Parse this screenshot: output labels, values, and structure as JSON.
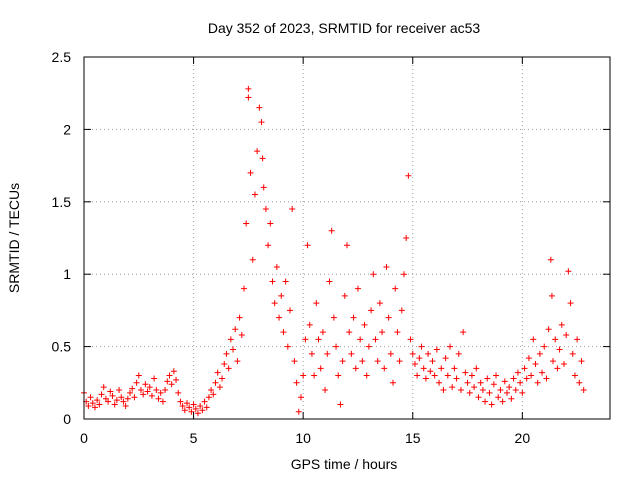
{
  "chart_data": {
    "type": "scatter",
    "title": "Day 352 of 2023, SRMTID for receiver ac53",
    "xlabel": "GPS time / hours",
    "ylabel": "SRMTID / TECUs",
    "xlim": [
      0,
      24
    ],
    "ylim": [
      0,
      2.5
    ],
    "xticks": [
      0,
      5,
      10,
      15,
      20
    ],
    "yticks": [
      0,
      0.5,
      1,
      1.5,
      2,
      2.5
    ],
    "xtick_labels": [
      "0",
      "5",
      "10",
      "15",
      "20"
    ],
    "ytick_labels": [
      "0",
      "0.5",
      "1",
      "1.5",
      "2",
      "2.5"
    ],
    "grid": true,
    "marker": "+",
    "color": "#ff0000",
    "series": [
      {
        "name": "SRMTID",
        "points": [
          [
            0.0,
            0.18
          ],
          [
            0.1,
            0.12
          ],
          [
            0.2,
            0.09
          ],
          [
            0.3,
            0.15
          ],
          [
            0.4,
            0.11
          ],
          [
            0.5,
            0.08
          ],
          [
            0.6,
            0.13
          ],
          [
            0.7,
            0.1
          ],
          [
            0.8,
            0.17
          ],
          [
            0.9,
            0.22
          ],
          [
            1.0,
            0.14
          ],
          [
            1.1,
            0.12
          ],
          [
            1.2,
            0.19
          ],
          [
            1.3,
            0.16
          ],
          [
            1.4,
            0.1
          ],
          [
            1.5,
            0.13
          ],
          [
            1.6,
            0.2
          ],
          [
            1.7,
            0.15
          ],
          [
            1.8,
            0.12
          ],
          [
            1.9,
            0.09
          ],
          [
            2.0,
            0.14
          ],
          [
            2.1,
            0.18
          ],
          [
            2.2,
            0.21
          ],
          [
            2.3,
            0.15
          ],
          [
            2.4,
            0.25
          ],
          [
            2.5,
            0.3
          ],
          [
            2.6,
            0.2
          ],
          [
            2.7,
            0.17
          ],
          [
            2.8,
            0.24
          ],
          [
            2.9,
            0.19
          ],
          [
            3.0,
            0.22
          ],
          [
            3.1,
            0.16
          ],
          [
            3.2,
            0.28
          ],
          [
            3.3,
            0.2
          ],
          [
            3.4,
            0.14
          ],
          [
            3.5,
            0.18
          ],
          [
            3.6,
            0.12
          ],
          [
            3.7,
            0.2
          ],
          [
            3.8,
            0.26
          ],
          [
            3.9,
            0.3
          ],
          [
            4.0,
            0.24
          ],
          [
            4.1,
            0.33
          ],
          [
            4.2,
            0.27
          ],
          [
            4.3,
            0.18
          ],
          [
            4.4,
            0.12
          ],
          [
            4.5,
            0.09
          ],
          [
            4.6,
            0.06
          ],
          [
            4.7,
            0.11
          ],
          [
            4.8,
            0.08
          ],
          [
            4.9,
            0.05
          ],
          [
            5.0,
            0.1
          ],
          [
            5.1,
            0.07
          ],
          [
            5.2,
            0.04
          ],
          [
            5.3,
            0.09
          ],
          [
            5.4,
            0.06
          ],
          [
            5.5,
            0.12
          ],
          [
            5.6,
            0.08
          ],
          [
            5.7,
            0.15
          ],
          [
            5.8,
            0.2
          ],
          [
            5.9,
            0.17
          ],
          [
            6.0,
            0.25
          ],
          [
            6.1,
            0.32
          ],
          [
            6.2,
            0.22
          ],
          [
            6.3,
            0.28
          ],
          [
            6.4,
            0.38
          ],
          [
            6.5,
            0.45
          ],
          [
            6.6,
            0.35
          ],
          [
            6.7,
            0.55
          ],
          [
            6.8,
            0.48
          ],
          [
            6.9,
            0.62
          ],
          [
            7.0,
            0.4
          ],
          [
            7.1,
            0.7
          ],
          [
            7.2,
            0.58
          ],
          [
            7.3,
            0.9
          ],
          [
            7.4,
            1.35
          ],
          [
            7.5,
            2.28
          ],
          [
            7.5,
            2.22
          ],
          [
            7.6,
            1.7
          ],
          [
            7.7,
            1.1
          ],
          [
            7.8,
            1.55
          ],
          [
            7.9,
            1.85
          ],
          [
            8.0,
            2.15
          ],
          [
            8.1,
            2.05
          ],
          [
            8.15,
            1.8
          ],
          [
            8.2,
            1.6
          ],
          [
            8.3,
            1.45
          ],
          [
            8.4,
            1.2
          ],
          [
            8.5,
            1.35
          ],
          [
            8.6,
            0.95
          ],
          [
            8.7,
            0.8
          ],
          [
            8.8,
            1.05
          ],
          [
            8.9,
            0.7
          ],
          [
            9.0,
            0.85
          ],
          [
            9.1,
            0.6
          ],
          [
            9.2,
            0.95
          ],
          [
            9.3,
            0.5
          ],
          [
            9.4,
            0.75
          ],
          [
            9.5,
            1.45
          ],
          [
            9.6,
            0.4
          ],
          [
            9.7,
            0.25
          ],
          [
            9.8,
            0.05
          ],
          [
            9.9,
            0.15
          ],
          [
            10.0,
            0.3
          ],
          [
            10.1,
            0.55
          ],
          [
            10.2,
            1.2
          ],
          [
            10.3,
            0.65
          ],
          [
            10.4,
            0.45
          ],
          [
            10.5,
            0.3
          ],
          [
            10.6,
            0.8
          ],
          [
            10.7,
            0.55
          ],
          [
            10.8,
            0.35
          ],
          [
            10.9,
            0.6
          ],
          [
            11.0,
            0.2
          ],
          [
            11.1,
            0.45
          ],
          [
            11.2,
            0.95
          ],
          [
            11.3,
            1.3
          ],
          [
            11.4,
            0.7
          ],
          [
            11.5,
            0.5
          ],
          [
            11.6,
            0.3
          ],
          [
            11.7,
            0.1
          ],
          [
            11.8,
            0.4
          ],
          [
            11.9,
            0.85
          ],
          [
            12.0,
            1.2
          ],
          [
            12.1,
            0.6
          ],
          [
            12.2,
            0.45
          ],
          [
            12.3,
            0.7
          ],
          [
            12.4,
            0.35
          ],
          [
            12.5,
            0.9
          ],
          [
            12.6,
            0.55
          ],
          [
            12.7,
            0.4
          ],
          [
            12.8,
            0.65
          ],
          [
            12.9,
            0.3
          ],
          [
            13.0,
            0.5
          ],
          [
            13.1,
            0.75
          ],
          [
            13.2,
            1.0
          ],
          [
            13.3,
            0.55
          ],
          [
            13.4,
            0.4
          ],
          [
            13.5,
            0.8
          ],
          [
            13.6,
            0.6
          ],
          [
            13.7,
            0.35
          ],
          [
            13.8,
            1.05
          ],
          [
            13.9,
            0.7
          ],
          [
            14.0,
            0.45
          ],
          [
            14.1,
            0.25
          ],
          [
            14.2,
            0.9
          ],
          [
            14.3,
            0.6
          ],
          [
            14.4,
            0.4
          ],
          [
            14.5,
            0.75
          ],
          [
            14.6,
            1.0
          ],
          [
            14.7,
            1.25
          ],
          [
            14.8,
            1.68
          ],
          [
            14.9,
            0.55
          ],
          [
            15.0,
            0.45
          ],
          [
            15.1,
            0.38
          ],
          [
            15.2,
            0.3
          ],
          [
            15.3,
            0.42
          ],
          [
            15.4,
            0.5
          ],
          [
            15.5,
            0.35
          ],
          [
            15.6,
            0.28
          ],
          [
            15.7,
            0.45
          ],
          [
            15.8,
            0.33
          ],
          [
            15.9,
            0.4
          ],
          [
            16.0,
            0.3
          ],
          [
            16.1,
            0.48
          ],
          [
            16.2,
            0.25
          ],
          [
            16.3,
            0.35
          ],
          [
            16.4,
            0.2
          ],
          [
            16.5,
            0.42
          ],
          [
            16.6,
            0.3
          ],
          [
            16.7,
            0.5
          ],
          [
            16.8,
            0.22
          ],
          [
            16.9,
            0.35
          ],
          [
            17.0,
            0.28
          ],
          [
            17.1,
            0.45
          ],
          [
            17.2,
            0.2
          ],
          [
            17.3,
            0.6
          ],
          [
            17.4,
            0.32
          ],
          [
            17.5,
            0.25
          ],
          [
            17.6,
            0.18
          ],
          [
            17.7,
            0.3
          ],
          [
            17.8,
            0.22
          ],
          [
            17.9,
            0.35
          ],
          [
            18.0,
            0.15
          ],
          [
            18.1,
            0.25
          ],
          [
            18.2,
            0.2
          ],
          [
            18.3,
            0.12
          ],
          [
            18.4,
            0.28
          ],
          [
            18.5,
            0.18
          ],
          [
            18.6,
            0.1
          ],
          [
            18.7,
            0.24
          ],
          [
            18.8,
            0.3
          ],
          [
            18.9,
            0.15
          ],
          [
            19.0,
            0.2
          ],
          [
            19.1,
            0.12
          ],
          [
            19.2,
            0.26
          ],
          [
            19.3,
            0.18
          ],
          [
            19.4,
            0.22
          ],
          [
            19.5,
            0.14
          ],
          [
            19.6,
            0.28
          ],
          [
            19.7,
            0.2
          ],
          [
            19.8,
            0.32
          ],
          [
            19.9,
            0.25
          ],
          [
            20.0,
            0.18
          ],
          [
            20.1,
            0.35
          ],
          [
            20.2,
            0.28
          ],
          [
            20.3,
            0.42
          ],
          [
            20.4,
            0.3
          ],
          [
            20.5,
            0.55
          ],
          [
            20.6,
            0.38
          ],
          [
            20.7,
            0.25
          ],
          [
            20.8,
            0.45
          ],
          [
            20.9,
            0.32
          ],
          [
            21.0,
            0.5
          ],
          [
            21.1,
            0.28
          ],
          [
            21.2,
            0.62
          ],
          [
            21.3,
            1.1
          ],
          [
            21.35,
            0.85
          ],
          [
            21.4,
            0.4
          ],
          [
            21.5,
            0.55
          ],
          [
            21.6,
            0.35
          ],
          [
            21.7,
            0.48
          ],
          [
            21.8,
            0.65
          ],
          [
            21.9,
            0.38
          ],
          [
            22.0,
            0.58
          ],
          [
            22.1,
            1.02
          ],
          [
            22.2,
            0.8
          ],
          [
            22.3,
            0.45
          ],
          [
            22.4,
            0.3
          ],
          [
            22.5,
            0.55
          ],
          [
            22.6,
            0.25
          ],
          [
            22.7,
            0.4
          ],
          [
            22.8,
            0.2
          ]
        ]
      }
    ]
  }
}
